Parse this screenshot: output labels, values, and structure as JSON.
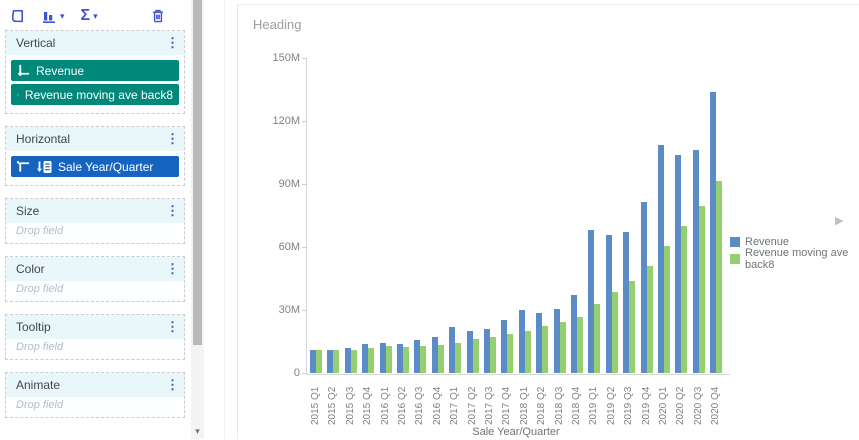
{
  "icons": {
    "kebab": "⋮",
    "caret_down": "▾",
    "sigma": "Σ",
    "legend_next": "▶",
    "scroll_down": "▾"
  },
  "sidebar": {
    "sections": [
      {
        "label": "Vertical"
      },
      {
        "label": "Horizontal"
      },
      {
        "label": "Size",
        "placeholder": "Drop field"
      },
      {
        "label": "Color",
        "placeholder": "Drop field"
      },
      {
        "label": "Tooltip",
        "placeholder": "Drop field"
      },
      {
        "label": "Animate",
        "placeholder": "Drop field"
      }
    ],
    "vertical_fields": [
      "Revenue",
      "Revenue moving ave back8"
    ],
    "horizontal_fields": [
      "Sale Year/Quarter"
    ]
  },
  "chart_data": {
    "type": "bar",
    "title": "Heading",
    "xlabel": "Sale Year/Quarter",
    "ylabel": "",
    "unit": "millions",
    "ylim": [
      0,
      150
    ],
    "y_ticks": [
      "0",
      "30M",
      "60M",
      "90M",
      "120M",
      "150M"
    ],
    "grid": false,
    "legend_position": "right",
    "categories": [
      "2015 Q1",
      "2015 Q2",
      "2015 Q3",
      "2015 Q4",
      "2016 Q1",
      "2016 Q2",
      "2016 Q3",
      "2016 Q4",
      "2017 Q1",
      "2017 Q2",
      "2017 Q3",
      "2017 Q4",
      "2018 Q1",
      "2018 Q2",
      "2018 Q3",
      "2018 Q4",
      "2019 Q1",
      "2019 Q2",
      "2019 Q3",
      "2019 Q4",
      "2020 Q1",
      "2020 Q2",
      "2020 Q3",
      "2020 Q4"
    ],
    "series": [
      {
        "name": "Revenue",
        "color": "#5b8cc8",
        "values": [
          11,
          11,
          12,
          14,
          14.5,
          14,
          15.5,
          17,
          22,
          20,
          21,
          25,
          30,
          28.5,
          30.5,
          37,
          68,
          65.5,
          67,
          81.5,
          108.5,
          104,
          106,
          134
        ]
      },
      {
        "name": "Revenue moving ave back8",
        "color": "#95cf70",
        "values": [
          11,
          11,
          11,
          12,
          13,
          12.5,
          13,
          13.5,
          14.5,
          16,
          17,
          18.5,
          20,
          22.5,
          24.5,
          26.5,
          33,
          38.5,
          44,
          51,
          60.5,
          70,
          79.5,
          91.5
        ]
      }
    ]
  },
  "colors": {
    "accent_blue": "#3d52d5",
    "pill_teal": "#00897b",
    "pill_blue": "#1565c0",
    "bar_blue": "#5b8cc8",
    "bar_green": "#95cf70",
    "section_header_bg": "#e9f7fa",
    "axis_text": "#7b8287"
  }
}
